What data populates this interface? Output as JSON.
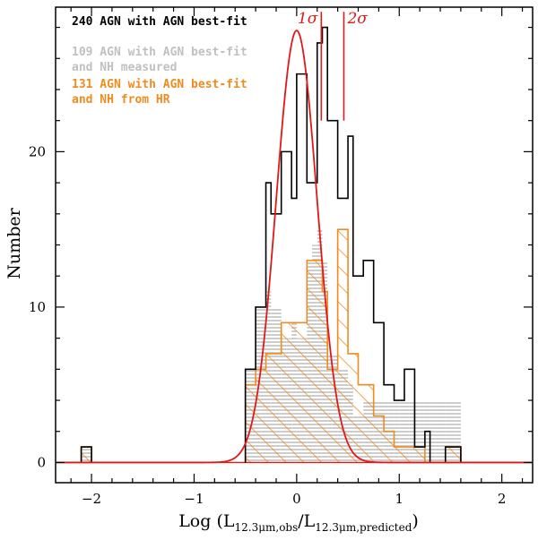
{
  "chart_data": {
    "type": "histogram",
    "title": "",
    "xlabel": "Log (L12.3μm,obs/L12.3μm,predicted)",
    "ylabel": "Number",
    "xlim": [
      -2.35,
      2.3
    ],
    "ylim": [
      -1.3,
      29.3
    ],
    "xticks": [
      -2,
      -1,
      0,
      1,
      2
    ],
    "yticks": [
      0,
      10,
      20
    ],
    "bin_edges": [
      -2.1,
      -2.0,
      -0.5,
      -0.45,
      -0.4,
      -0.35,
      -0.3,
      -0.25,
      -0.2,
      -0.15,
      -0.1,
      -0.05,
      0.0,
      0.05,
      0.1,
      0.15,
      0.2,
      0.25,
      0.3,
      0.35,
      0.4,
      0.45,
      0.5,
      0.55,
      0.6,
      0.65,
      0.7,
      0.75,
      0.8,
      0.85,
      0.9,
      0.95,
      1.0,
      1.05,
      1.1,
      1.15,
      1.2,
      1.25,
      1.3,
      1.35,
      1.4,
      1.45,
      1.5,
      1.55,
      1.6
    ],
    "series": [
      {
        "name": "240 AGN with AGN best-fit",
        "color": "#000000",
        "style": "step-outline",
        "values": [
          1,
          0,
          6,
          6,
          10,
          10,
          18,
          16,
          16,
          20,
          20,
          17,
          25,
          25,
          18,
          18,
          27,
          28,
          22,
          22,
          17,
          17,
          21,
          12,
          12,
          13,
          13,
          9,
          9,
          5,
          5,
          4,
          4,
          6,
          6,
          1,
          1,
          2,
          0,
          0,
          0,
          1,
          1,
          1
        ]
      },
      {
        "name": "109 AGN with AGN best-fit and NH measured",
        "color": "#c0c0c0",
        "style": "horizontal-hatch-fill",
        "values": [
          1,
          0,
          6,
          6,
          10,
          10,
          11,
          10,
          10,
          8,
          8,
          9,
          8,
          8,
          13,
          14,
          15,
          13,
          7,
          7,
          6,
          6,
          5,
          3,
          3,
          4,
          4,
          4,
          4,
          4,
          4,
          4,
          4,
          4,
          4,
          4,
          4,
          4,
          4,
          4,
          4,
          4,
          4,
          4
        ]
      },
      {
        "name": "131 AGN with AGN best-fit and NH from HR",
        "color": "#f08c1e",
        "style": "diagonal-hatch-outline",
        "values": [
          1,
          0,
          5,
          5,
          6,
          6,
          7,
          7,
          7,
          9,
          9,
          9,
          9,
          9,
          13,
          13,
          13,
          11,
          6,
          6,
          15,
          15,
          7,
          7,
          5,
          5,
          5,
          3,
          3,
          2,
          2,
          1,
          1,
          1,
          1,
          1,
          1,
          0,
          0,
          0,
          0,
          1,
          1,
          1
        ]
      }
    ],
    "curve": {
      "name": "gaussian",
      "color": "#e01818",
      "center": 0.0,
      "sigma": 0.2,
      "peak": 27.8
    },
    "annotations": [
      {
        "label": "1σ",
        "x": 0.24,
        "ymin": 22,
        "ymax": 29,
        "color": "#e01818"
      },
      {
        "label": "2σ",
        "x": 0.46,
        "ymin": 22,
        "ymax": 29,
        "color": "#e01818"
      }
    ],
    "legend": [
      {
        "text": "240 AGN with AGN best-fit",
        "color": "#000000"
      },
      {
        "text": "109 AGN with AGN best-fit",
        "color": "#c0c0c0"
      },
      {
        "text": "and NH measured",
        "color": "#c0c0c0"
      },
      {
        "text": "131 AGN with AGN best-fit",
        "color": "#f08c1e"
      },
      {
        "text": "and NH from HR",
        "color": "#f08c1e"
      }
    ]
  }
}
